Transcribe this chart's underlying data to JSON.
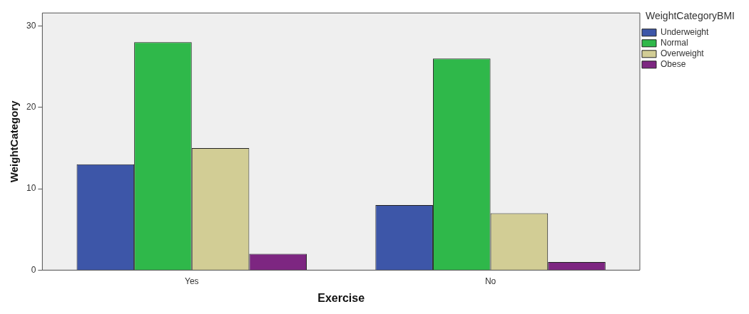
{
  "chart_data": {
    "type": "bar",
    "xlabel": "Exercise",
    "ylabel": "WeightCategory",
    "legend_title": "WeightCategoryBMI",
    "categories": [
      "Yes",
      "No"
    ],
    "series": [
      {
        "name": "Underweight",
        "color": "#3d56a8",
        "values": [
          13,
          8
        ]
      },
      {
        "name": "Normal",
        "color": "#2fb84a",
        "values": [
          28,
          26
        ]
      },
      {
        "name": "Overweight",
        "color": "#d2cd95",
        "values": [
          15,
          7
        ]
      },
      {
        "name": "Obese",
        "color": "#7d2681",
        "values": [
          2,
          1
        ]
      }
    ],
    "ylim": [
      0,
      31.6
    ],
    "yticks": [
      0,
      10,
      20,
      30
    ],
    "grid": false,
    "legend": "top right"
  }
}
